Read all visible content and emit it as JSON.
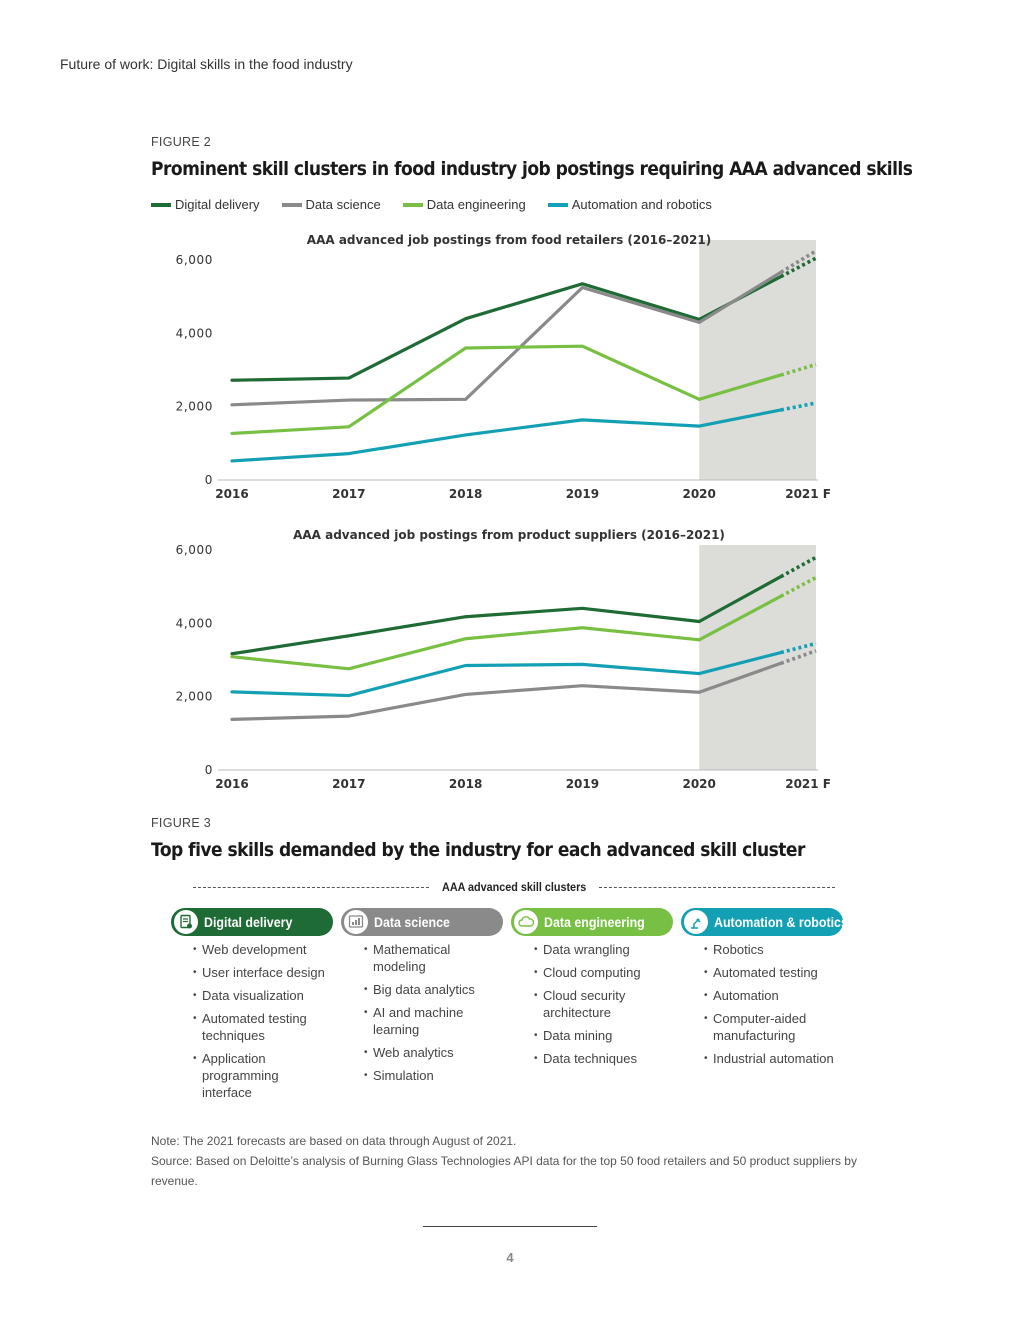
{
  "page": {
    "header": "Future of work: Digital skills in the food industry",
    "page_number": "4"
  },
  "figure2": {
    "label": "FIGURE 2",
    "title": "Prominent skill clusters in food industry job postings requiring AAA advanced skills",
    "legend": [
      {
        "name": "Digital delivery",
        "color": "#1f6b35"
      },
      {
        "name": "Data science",
        "color": "#8a8a8a"
      },
      {
        "name": "Data engineering",
        "color": "#78c043"
      },
      {
        "name": "Automation and robotics",
        "color": "#14a0b4"
      }
    ]
  },
  "chart_data": [
    {
      "type": "line",
      "title": "AAA advanced job postings from food retailers (2016–2021)",
      "categories": [
        "2016",
        "2017",
        "2018",
        "2019",
        "2020",
        "2021 F"
      ],
      "ylim": [
        0,
        6000
      ],
      "yticks": [
        0,
        2000,
        4000,
        6000
      ],
      "ytick_labels": [
        "0",
        "2,000",
        "4,000",
        "6,000"
      ],
      "forecast_shaded_from": "2020",
      "series": [
        {
          "name": "Digital delivery",
          "color": "#1f6b35",
          "values": [
            2720,
            2780,
            4400,
            5350,
            4380,
            6050
          ]
        },
        {
          "name": "Data science",
          "color": "#8a8a8a",
          "values": [
            2050,
            2180,
            2200,
            5250,
            4300,
            6250
          ]
        },
        {
          "name": "Data engineering",
          "color": "#78c043",
          "values": [
            1270,
            1450,
            3600,
            3650,
            2200,
            3150
          ]
        },
        {
          "name": "Automation and robotics",
          "color": "#14a0b4",
          "values": [
            520,
            720,
            1230,
            1640,
            1470,
            2100
          ]
        }
      ]
    },
    {
      "type": "line",
      "title": "AAA advanced job postings from product suppliers (2016–2021)",
      "categories": [
        "2016",
        "2017",
        "2018",
        "2019",
        "2020",
        "2021 F"
      ],
      "ylim": [
        0,
        6000
      ],
      "yticks": [
        0,
        2000,
        4000,
        6000
      ],
      "ytick_labels": [
        "0",
        "2,000",
        "4,000",
        "6,000"
      ],
      "forecast_shaded_from": "2020",
      "series": [
        {
          "name": "Digital delivery",
          "color": "#1f6b35",
          "values": [
            3170,
            3660,
            4180,
            4410,
            4050,
            5800
          ]
        },
        {
          "name": "Data science",
          "color": "#8a8a8a",
          "values": [
            1380,
            1470,
            2060,
            2300,
            2120,
            3250
          ]
        },
        {
          "name": "Data engineering",
          "color": "#78c043",
          "values": [
            3090,
            2760,
            3580,
            3880,
            3550,
            5250
          ]
        },
        {
          "name": "Automation and robotics",
          "color": "#14a0b4",
          "values": [
            2130,
            2030,
            2850,
            2880,
            2630,
            3450
          ]
        }
      ]
    }
  ],
  "figure3": {
    "label": "FIGURE 3",
    "title": "Top five skills demanded by the industry for each advanced skill cluster",
    "heading": "AAA advanced skill clusters",
    "clusters": [
      {
        "name": "Digital delivery",
        "color": "#1f6b35",
        "icon": "document-icon",
        "skills": [
          "Web development",
          "User interface design",
          "Data visualization",
          "Automated testing techniques",
          "Application programming interface"
        ]
      },
      {
        "name": "Data science",
        "color": "#8a8a8a",
        "icon": "chart-icon",
        "skills": [
          "Mathematical modeling",
          "Big data analytics",
          "AI and machine learning",
          "Web analytics",
          "Simulation"
        ]
      },
      {
        "name": "Data engineering",
        "color": "#78c043",
        "icon": "cloud-icon",
        "skills": [
          "Data wrangling",
          "Cloud computing",
          "Cloud security architecture",
          "Data mining",
          "Data techniques"
        ]
      },
      {
        "name": "Automation & robotics",
        "color": "#14a0b4",
        "icon": "robot-arm-icon",
        "skills": [
          "Robotics",
          "Automated testing",
          "Automation",
          "Computer-aided manufacturing",
          "Industrial automation"
        ]
      }
    ]
  },
  "notes": {
    "note": "Note: The 2021 forecasts are based on data through August of 2021.",
    "source": "Source: Based on Deloitte’s analysis of Burning Glass Technologies API data for the top 50 food retailers and 50 product suppliers by revenue."
  }
}
